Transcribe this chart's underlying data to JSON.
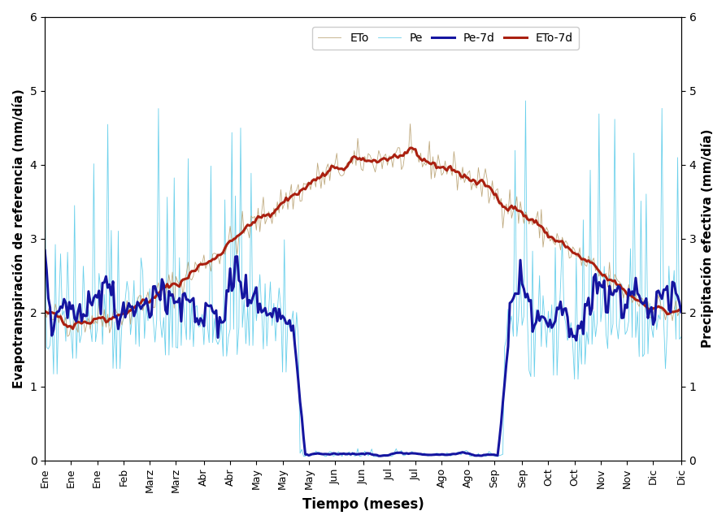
{
  "xlabel": "Tiempo (meses)",
  "ylabel_left": "Evapotranspiración de referencia (mm/día)",
  "ylabel_right": "Precipitación efectiva (mm/día)",
  "ylim": [
    0,
    6
  ],
  "xlim_label": [
    "Ene",
    "Ene",
    "Ene",
    "Feb",
    "Marz",
    "Marz",
    "Abr",
    "Abr",
    "May",
    "May",
    "May",
    "Jun",
    "Jun",
    "Jul",
    "Jul",
    "Ago",
    "Ago",
    "Sep",
    "Sep",
    "Oct",
    "Oct",
    "Nov",
    "Nov",
    "Dic",
    "Dic"
  ],
  "legend": [
    "ETo",
    "Pe",
    "Pe-7d",
    "ETo-7d"
  ],
  "colors": {
    "ETo": "#b8a070",
    "Pe": "#50c8e8",
    "Pe7d": "#1515a0",
    "ETo7d": "#aa2010"
  },
  "linewidth_thin": 0.6,
  "linewidth_thick": 2.2,
  "n_points": 365
}
